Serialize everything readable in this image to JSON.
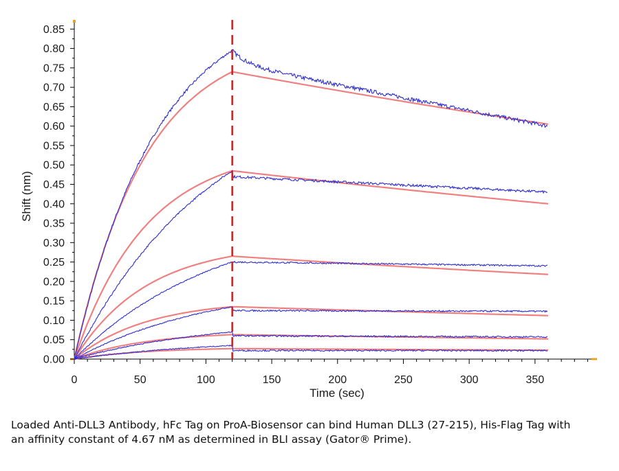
{
  "chart_data": {
    "type": "line",
    "xlabel": "Time (sec)",
    "ylabel": "Shift (nm)",
    "xlim": [
      0,
      395
    ],
    "ylim": [
      0,
      0.87
    ],
    "xticks": [
      0,
      50,
      100,
      150,
      200,
      250,
      300,
      350
    ],
    "yticks": [
      "0.00",
      "0.05",
      "0.10",
      "0.15",
      "0.20",
      "0.25",
      "0.30",
      "0.35",
      "0.40",
      "0.45",
      "0.50",
      "0.55",
      "0.60",
      "0.65",
      "0.70",
      "0.75",
      "0.80",
      "0.85"
    ],
    "dissociation_start_sec": 120,
    "end_sec": 360,
    "grid": false,
    "colors": {
      "measured": "#2b2bd0",
      "fit": "#f08080",
      "marker": "#cc1f1f"
    },
    "series": [
      {
        "measured": {
          "peak": 0.795,
          "after": 0.76,
          "end": 0.6
        },
        "fit": {
          "peak": 0.74,
          "end": 0.605
        }
      },
      {
        "measured": {
          "peak": 0.485,
          "after": 0.47,
          "end": 0.43
        },
        "fit": {
          "peak": 0.485,
          "end": 0.4
        }
      },
      {
        "measured": {
          "peak": 0.25,
          "after": 0.25,
          "end": 0.24
        },
        "fit": {
          "peak": 0.265,
          "end": 0.218
        }
      },
      {
        "measured": {
          "peak": 0.135,
          "after": 0.125,
          "end": 0.123
        },
        "fit": {
          "peak": 0.135,
          "end": 0.112
        }
      },
      {
        "measured": {
          "peak": 0.07,
          "after": 0.06,
          "end": 0.057
        },
        "fit": {
          "peak": 0.063,
          "end": 0.052
        }
      },
      {
        "measured": {
          "peak": 0.035,
          "after": 0.022,
          "end": 0.022
        },
        "fit": {
          "peak": 0.027,
          "end": 0.023
        }
      }
    ]
  },
  "caption": "Loaded Anti-DLL3 Antibody, hFc Tag on ProA-Biosensor can bind Human DLL3 (27-215), His-Flag Tag with an affinity constant of 4.67 nM as determined in BLI assay (Gator® Prime)."
}
